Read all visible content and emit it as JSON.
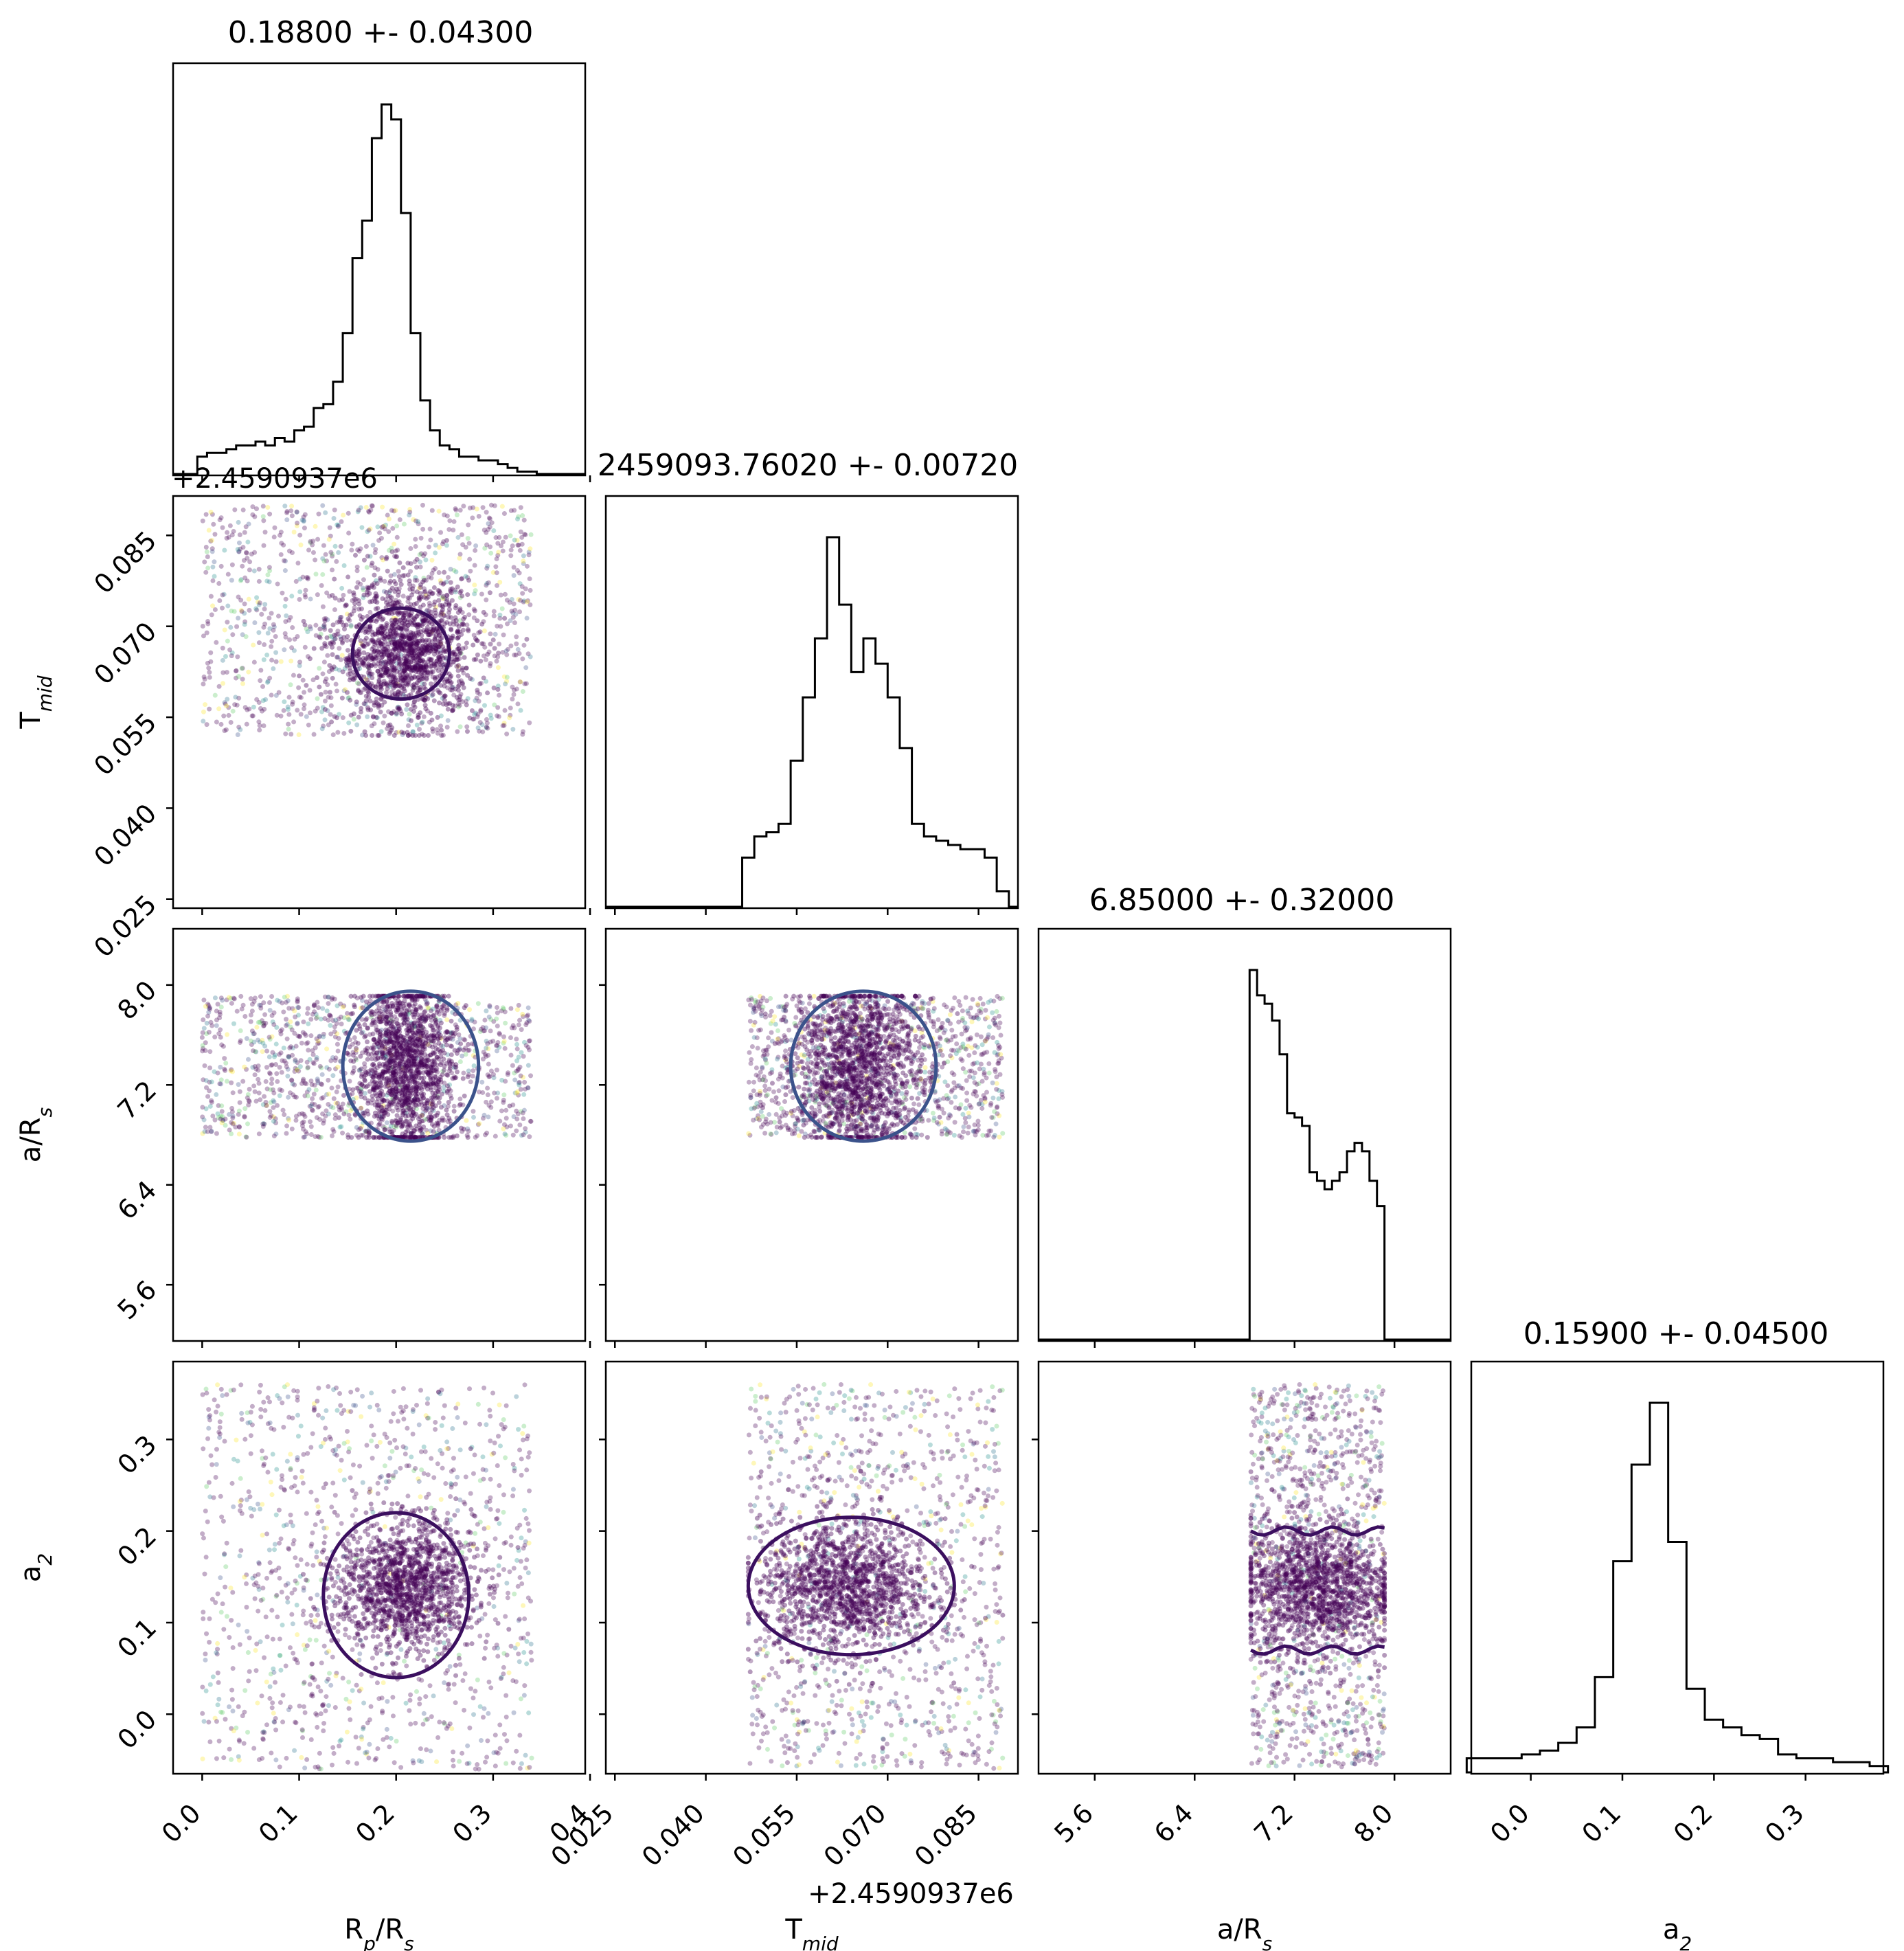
{
  "chart_data": {
    "type": "scatter",
    "subtype": "corner",
    "grid": false,
    "parameters": [
      {
        "key": "rprs",
        "label": "R",
        "sub": "p",
        "label_tail": "/R",
        "sub2": "s"
      },
      {
        "key": "tmid",
        "label": "T",
        "sub": "mid",
        "label_tail": "",
        "sub2": ""
      },
      {
        "key": "ars",
        "label": "a/R",
        "sub": "s",
        "label_tail": "",
        "sub2": ""
      },
      {
        "key": "a2",
        "label": "a",
        "sub": "2",
        "label_tail": "",
        "sub2": ""
      }
    ],
    "titles": [
      "0.18800 +- 0.04300",
      "2459093.76020 +- 0.00720",
      "6.85000 +- 0.32000",
      "0.15900 +- 0.04500"
    ],
    "offset_labels": {
      "tmid_y": "+2.4590937e6",
      "tmid_x": "+2.4590937e6"
    },
    "axes": {
      "rprs": {
        "range": [
          -0.03,
          0.395
        ],
        "ticks": [
          "0.0",
          "0.1",
          "0.2",
          "0.3",
          "0.4"
        ],
        "tick_values": [
          0.0,
          0.1,
          0.2,
          0.3,
          0.4
        ]
      },
      "tmid": {
        "range": [
          0.0235,
          0.0915
        ],
        "ticks": [
          "0.025",
          "0.040",
          "0.055",
          "0.070",
          "0.085"
        ],
        "tick_values": [
          0.025,
          0.04,
          0.055,
          0.07,
          0.085
        ]
      },
      "ars": {
        "range": [
          5.15,
          8.45
        ],
        "ticks": [
          "5.6",
          "6.4",
          "7.2",
          "8.0"
        ],
        "tick_values": [
          5.6,
          6.4,
          7.2,
          8.0
        ]
      },
      "a2": {
        "range": [
          -0.065,
          0.385
        ],
        "ticks": [
          "0.0",
          "0.1",
          "0.2",
          "0.3"
        ],
        "tick_values": [
          0.0,
          0.1,
          0.2,
          0.3
        ]
      }
    },
    "histograms": [
      {
        "param": "rprs",
        "x": [
          0.0,
          0.01,
          0.02,
          0.03,
          0.04,
          0.05,
          0.06,
          0.07,
          0.08,
          0.09,
          0.1,
          0.11,
          0.12,
          0.13,
          0.14,
          0.15,
          0.16,
          0.17,
          0.18,
          0.19,
          0.2,
          0.21,
          0.22,
          0.23,
          0.24,
          0.25,
          0.26,
          0.27,
          0.28,
          0.29,
          0.3,
          0.31,
          0.32,
          0.33,
          0.34
        ],
        "values": [
          5,
          6,
          6,
          7,
          8,
          8,
          9,
          8,
          10,
          9,
          12,
          13,
          18,
          19,
          25,
          38,
          58,
          68,
          90,
          99,
          95,
          70,
          38,
          20,
          12,
          8,
          7,
          5,
          5,
          4,
          4,
          3,
          2,
          1,
          1
        ]
      },
      {
        "param": "tmid",
        "x": [
          0.047,
          0.049,
          0.051,
          0.053,
          0.055,
          0.057,
          0.059,
          0.061,
          0.063,
          0.065,
          0.067,
          0.069,
          0.071,
          0.073,
          0.075,
          0.077,
          0.079,
          0.081,
          0.083,
          0.085,
          0.087,
          0.089
        ],
        "values": [
          12,
          17,
          18,
          20,
          35,
          50,
          64,
          88,
          72,
          56,
          64,
          58,
          50,
          38,
          20,
          17,
          16,
          15,
          14,
          14,
          12,
          4
        ]
      },
      {
        "param": "ars",
        "x": [
          6.87,
          6.93,
          6.99,
          7.05,
          7.11,
          7.17,
          7.23,
          7.29,
          7.35,
          7.41,
          7.47,
          7.53,
          7.59,
          7.65,
          7.71,
          7.77,
          7.83,
          7.89
        ],
        "values": [
          88,
          82,
          80,
          76,
          68,
          54,
          53,
          51,
          40,
          38,
          36,
          38,
          40,
          45,
          47,
          45,
          38,
          32
        ]
      },
      {
        "param": "a2",
        "x": [
          -0.06,
          -0.04,
          -0.02,
          0.0,
          0.02,
          0.04,
          0.06,
          0.08,
          0.1,
          0.12,
          0.14,
          0.16,
          0.18,
          0.2,
          0.22,
          0.24,
          0.26,
          0.28,
          0.3,
          0.32,
          0.34,
          0.36,
          0.38
        ],
        "values": [
          4,
          4,
          4,
          5,
          6,
          8,
          12,
          25,
          55,
          80,
          96,
          60,
          22,
          14,
          12,
          10,
          9,
          5,
          4,
          4,
          3,
          3,
          2
        ]
      }
    ],
    "scatter_pairs": [
      {
        "x": "rprs",
        "y": "tmid",
        "box": {
          "x": [
            0.0,
            0.34
          ],
          "y": [
            0.052,
            0.09
          ]
        },
        "core": {
          "mean": [
            0.21,
            0.066
          ],
          "sd": [
            0.035,
            0.0055
          ]
        },
        "contours": [
          {
            "type": "ellipse",
            "cx": 0.205,
            "cy": 0.0655,
            "rx": 0.05,
            "ry": 0.0075,
            "color": "#3b0f5f"
          }
        ]
      },
      {
        "x": "rprs",
        "y": "ars",
        "box": {
          "x": [
            0.0,
            0.34
          ],
          "y": [
            6.78,
            7.91
          ]
        },
        "core": {
          "mean": [
            0.21,
            7.35
          ],
          "sd": [
            0.025,
            0.35
          ]
        },
        "contours": [
          {
            "type": "ellipse",
            "cx": 0.215,
            "cy": 7.35,
            "rx": 0.07,
            "ry": 0.6,
            "color": "#3b528b"
          }
        ]
      },
      {
        "x": "rprs",
        "y": "a2",
        "box": {
          "x": [
            0.0,
            0.34
          ],
          "y": [
            -0.06,
            0.36
          ]
        },
        "core": {
          "mean": [
            0.21,
            0.14
          ],
          "sd": [
            0.035,
            0.035
          ]
        },
        "contours": [
          {
            "type": "ellipse",
            "cx": 0.2,
            "cy": 0.13,
            "rx": 0.075,
            "ry": 0.09,
            "color": "#3b0f5f"
          }
        ]
      },
      {
        "x": "tmid",
        "y": "ars",
        "box": {
          "x": [
            0.047,
            0.089
          ],
          "y": [
            6.78,
            7.91
          ]
        },
        "core": {
          "mean": [
            0.065,
            7.35
          ],
          "sd": [
            0.005,
            0.35
          ]
        },
        "contours": [
          {
            "type": "ellipse",
            "cx": 0.066,
            "cy": 7.35,
            "rx": 0.012,
            "ry": 0.6,
            "color": "#3b528b"
          }
        ]
      },
      {
        "x": "tmid",
        "y": "a2",
        "box": {
          "x": [
            0.047,
            0.089
          ],
          "y": [
            -0.06,
            0.36
          ]
        },
        "core": {
          "mean": [
            0.063,
            0.14
          ],
          "sd": [
            0.007,
            0.035
          ]
        },
        "contours": [
          {
            "type": "ellipse",
            "cx": 0.064,
            "cy": 0.14,
            "rx": 0.017,
            "ry": 0.075,
            "color": "#3b0f5f"
          }
        ]
      },
      {
        "x": "ars",
        "y": "a2",
        "box": {
          "x": [
            6.85,
            7.92
          ],
          "y": [
            -0.06,
            0.36
          ]
        },
        "core": {
          "mean": [
            7.38,
            0.14
          ],
          "sd": [
            0.3,
            0.035
          ]
        },
        "contours": [
          {
            "type": "band",
            "y": [
              0.07,
              0.2
            ],
            "color": "#3b0f5f"
          }
        ]
      }
    ]
  }
}
